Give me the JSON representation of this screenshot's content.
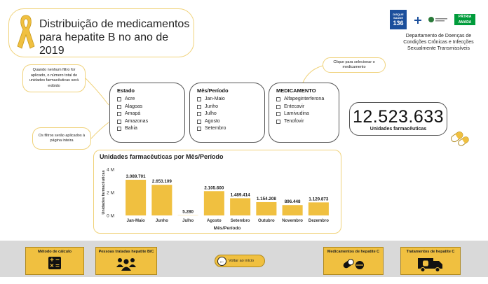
{
  "header": {
    "title": "Distribuição de medicamentos para hepatite B no ano de 2019"
  },
  "logos": {
    "disque_top": "DISQUE SAÚDE",
    "disque_number": "136",
    "brasil_text": "PÁTRIA AMADA BRASIL"
  },
  "department": "Departamento de Doenças de Condições Crônicas e Infecções Sexualmente Transmissíveis",
  "notes": {
    "empty_filter": "Quando nenhum filtro for aplicado, o número total de unidades farmacêuticas será exibido",
    "filters_scope": "Os filtros serão aplicados à página inteira",
    "select_med": "Clique para selecionar o medicamento"
  },
  "filters": {
    "estado": {
      "title": "Estado",
      "options": [
        "Acre",
        "Alagoas",
        "Amapá",
        "Amazonas",
        "Bahia"
      ]
    },
    "mes": {
      "title": "Mês/Período",
      "options": [
        "Jan-Maio",
        "Junho",
        "Julho",
        "Agosto",
        "Setembro"
      ]
    },
    "medicamento": {
      "title": "MEDICAMENTO",
      "options": [
        "Alfapeginterferona",
        "Entecavir",
        "Lamivudina",
        "Tenofovir"
      ]
    }
  },
  "kpi": {
    "value": "12.523.633",
    "label": "Unidades farmacêuticas"
  },
  "chart_data": {
    "type": "bar",
    "title": "Unidades farmacêuticas por Mês/Período",
    "xlabel": "Mês/Período",
    "ylabel": "Unidades farmacêuticas",
    "categories": [
      "Jan-Maio",
      "Junho",
      "Julho",
      "Agosto",
      "Setembro",
      "Outubro",
      "Novembro",
      "Dezembro"
    ],
    "values": [
      3089701,
      2653109,
      5280,
      2105600,
      1489414,
      1154208,
      896448,
      1129873
    ],
    "data_labels": [
      "3.089.701",
      "2.653.109",
      "5.280",
      "2.105.600",
      "1.489.414",
      "1.154.208",
      "896.448",
      "1.129.873"
    ],
    "yticks": [
      0,
      2000000,
      4000000
    ],
    "ytick_labels": [
      "0 M",
      "2 M",
      "4 M"
    ],
    "ylim": [
      0,
      4000000
    ],
    "bar_color": "#f0c040"
  },
  "nav": {
    "metodo": "Método de cálculo",
    "pessoas": "Pessoas tratadas hepatite B/C",
    "back": "Voltar ao início",
    "medicamentos": "Medicamentos de hepatite C",
    "tratamentos": "Tratamentos de hepatite C"
  },
  "colors": {
    "accent": "#f0c040",
    "border_accent": "#f0d27a",
    "bottom_bar": "#d9d9d9"
  }
}
